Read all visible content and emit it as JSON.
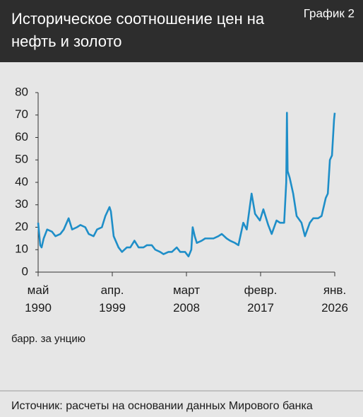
{
  "chart_data": {
    "type": "line",
    "title": "Историческое соотношение цен на нефть и золото",
    "badge": "График 2",
    "y_label": "барр. за унцию",
    "source": "Источник: расчеты на основании данных Мирового банка",
    "ylim": [
      0,
      80
    ],
    "yticks": [
      0,
      10,
      20,
      30,
      40,
      50,
      60,
      70,
      80
    ],
    "xlim": [
      "1990-05",
      "2026-01"
    ],
    "xticks": [
      {
        "value": "1990-05",
        "label": "май 1990"
      },
      {
        "value": "1999-04",
        "label": "апр. 1999"
      },
      {
        "value": "2008-03",
        "label": "март 2008"
      },
      {
        "value": "2017-02",
        "label": "февр. 2017"
      },
      {
        "value": "2026-01",
        "label": "янв. 2026"
      }
    ],
    "x": [
      "1990-05",
      "1990-08",
      "1990-10",
      "1991-01",
      "1991-06",
      "1992-01",
      "1992-06",
      "1993-01",
      "1993-06",
      "1994-01",
      "1994-06",
      "1995-01",
      "1995-06",
      "1996-01",
      "1996-06",
      "1997-01",
      "1997-06",
      "1998-01",
      "1998-06",
      "1998-12",
      "1999-02",
      "1999-06",
      "2000-01",
      "2000-06",
      "2001-01",
      "2001-06",
      "2001-12",
      "2002-06",
      "2003-01",
      "2003-06",
      "2004-01",
      "2004-06",
      "2005-01",
      "2005-06",
      "2006-01",
      "2006-06",
      "2007-01",
      "2007-06",
      "2008-01",
      "2008-06",
      "2008-10",
      "2008-12",
      "2009-03",
      "2009-06",
      "2010-01",
      "2010-06",
      "2011-01",
      "2011-06",
      "2012-01",
      "2012-06",
      "2013-01",
      "2013-06",
      "2014-01",
      "2014-06",
      "2015-01",
      "2015-06",
      "2016-01",
      "2016-06",
      "2017-01",
      "2017-06",
      "2018-01",
      "2018-06",
      "2019-01",
      "2019-06",
      "2019-12",
      "2020-03",
      "2020-04",
      "2020-05",
      "2020-08",
      "2021-01",
      "2021-06",
      "2022-01",
      "2022-06",
      "2023-01",
      "2023-06",
      "2024-01",
      "2024-06",
      "2024-12",
      "2025-03",
      "2025-06",
      "2025-09",
      "2025-12",
      "2026-01"
    ],
    "series": [
      {
        "name": "соотношение",
        "color": "#1e8ec8",
        "values": [
          22,
          12,
          11,
          15,
          19,
          18,
          16,
          17,
          19,
          24,
          19,
          20,
          21,
          20,
          17,
          16,
          19,
          20,
          25,
          29,
          27,
          16,
          11,
          9,
          11,
          11,
          14,
          11,
          11,
          12,
          12,
          10,
          9,
          8,
          9,
          9,
          11,
          9,
          9,
          7,
          10,
          20,
          16,
          13,
          14,
          15,
          15,
          15,
          16,
          17,
          15,
          14,
          13,
          12,
          22,
          19,
          35,
          26,
          23,
          28,
          21,
          17,
          23,
          22,
          22,
          40,
          71,
          45,
          42,
          35,
          25,
          22,
          16,
          22,
          24,
          24,
          25,
          33,
          35,
          50,
          52,
          68,
          71
        ]
      }
    ]
  }
}
